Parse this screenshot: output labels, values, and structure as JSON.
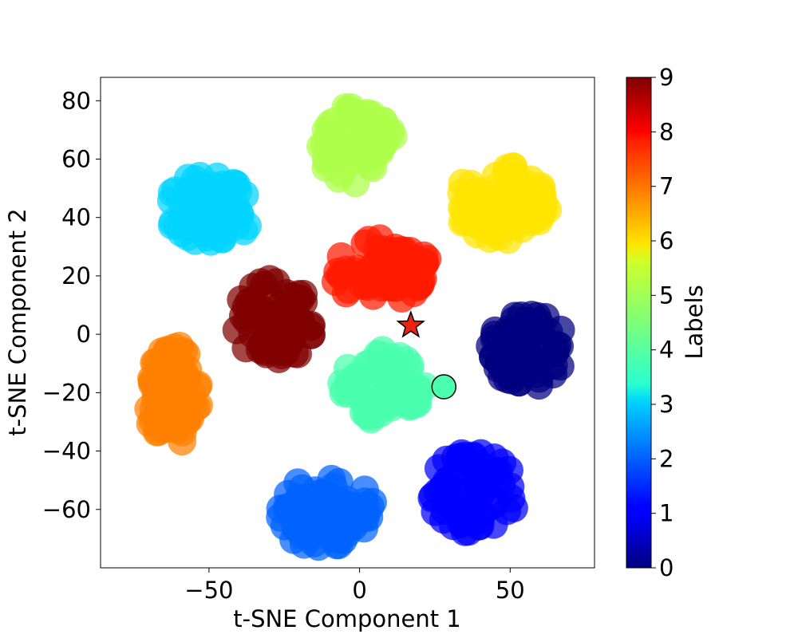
{
  "chart_data": {
    "type": "scatter",
    "title": "",
    "xlabel": "t-SNE Component 1",
    "ylabel": "t-SNE Component 2",
    "xlim": [
      -86,
      78
    ],
    "ylim": [
      -80,
      88
    ],
    "xticks": [
      -50,
      0,
      50
    ],
    "xtick_labels": [
      "−50",
      "0",
      "50"
    ],
    "yticks": [
      80,
      60,
      40,
      20,
      0,
      -20,
      -40,
      -60
    ],
    "ytick_labels": [
      "80",
      "60",
      "40",
      "20",
      "0",
      "−20",
      "−40",
      "−60"
    ],
    "grid": false,
    "colormap": "jet",
    "colorbar": {
      "label": "Labels",
      "range": [
        0,
        9
      ],
      "ticks": [
        0,
        1,
        2,
        3,
        4,
        5,
        6,
        7,
        8,
        9
      ],
      "tick_labels": [
        "0",
        "1",
        "2",
        "3",
        "4",
        "5",
        "6",
        "7",
        "8",
        "9"
      ]
    },
    "clusters": [
      {
        "label": 0,
        "center": [
          56,
          -5
        ],
        "spread": [
          13,
          13
        ],
        "color": "#00007f"
      },
      {
        "label": 1,
        "center": [
          38,
          -54
        ],
        "spread": [
          15,
          14
        ],
        "color": "#0000ff"
      },
      {
        "label": 2,
        "center": [
          -11,
          -61
        ],
        "spread": [
          16,
          13
        ],
        "color": "#0063ff"
      },
      {
        "label": 3,
        "center": [
          -50,
          43
        ],
        "spread": [
          15,
          12
        ],
        "color": "#00d4ff"
      },
      {
        "label": 4,
        "center": [
          8,
          -17
        ],
        "spread": [
          14,
          13
        ],
        "color": "#4affad"
      },
      {
        "label": 5,
        "center": [
          -1,
          65
        ],
        "spread": [
          13,
          14
        ],
        "color": "#adff4a"
      },
      {
        "label": 6,
        "center": [
          47,
          45
        ],
        "spread": [
          16,
          13
        ],
        "color": "#ffe500"
      },
      {
        "label": 7,
        "center": [
          -62,
          -21
        ],
        "spread": [
          9,
          18
        ],
        "color": "#ff7f00"
      },
      {
        "label": 8,
        "center": [
          7,
          22
        ],
        "spread": [
          17,
          11
        ],
        "color": "#ff1a00"
      },
      {
        "label": 9,
        "center": [
          -28,
          5
        ],
        "spread": [
          14,
          14
        ],
        "color": "#7f0000"
      }
    ],
    "highlight_points": [
      {
        "marker": "star",
        "x": 17,
        "y": 3,
        "color": "#ee2211",
        "edge": "#000000"
      },
      {
        "marker": "circle",
        "x": 28,
        "y": -18,
        "color": "#4affad",
        "edge": "#000000"
      }
    ]
  }
}
